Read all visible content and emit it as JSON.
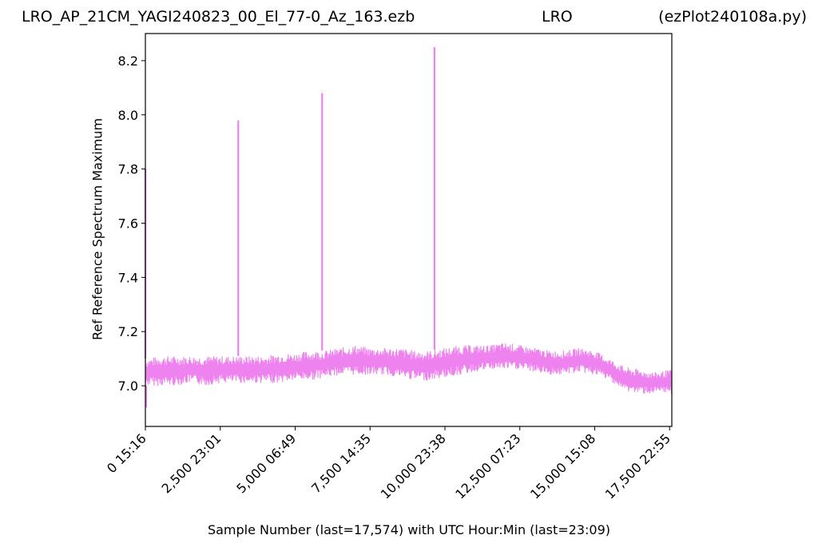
{
  "header": {
    "file": "LRO_AP_21CM_YAGI240823_00_El_77-0_Az_163.ezb",
    "site": "LRO",
    "program": "(ezPlot240108a.py)"
  },
  "chart_data": {
    "type": "line",
    "title": "",
    "xlabel": "Sample Number (last=17,574) with UTC Hour:Min (last=23:09)",
    "ylabel": "Ref Reference Spectrum Maximum",
    "xlim": [
      0,
      17574
    ],
    "ylim": [
      6.85,
      8.3
    ],
    "grid": false,
    "x_ticks": [
      {
        "value": 0,
        "label": "0  15:16"
      },
      {
        "value": 2500,
        "label": "2,500  23:01"
      },
      {
        "value": 5000,
        "label": "5,000  06:49"
      },
      {
        "value": 7500,
        "label": "7,500  14:35"
      },
      {
        "value": 10000,
        "label": "10,000  23:38"
      },
      {
        "value": 12500,
        "label": "12,500  07:23"
      },
      {
        "value": 15000,
        "label": "15,000  15:08"
      },
      {
        "value": 17500,
        "label": "17,500  22:55"
      }
    ],
    "y_ticks": [
      {
        "value": 7.0,
        "label": "7.0"
      },
      {
        "value": 7.2,
        "label": "7.2"
      },
      {
        "value": 7.4,
        "label": "7.4"
      },
      {
        "value": 7.6,
        "label": "7.6"
      },
      {
        "value": 7.8,
        "label": "7.8"
      },
      {
        "value": 8.0,
        "label": "8.0"
      },
      {
        "value": 8.2,
        "label": "8.2"
      }
    ],
    "series": [
      {
        "color": "#ee82ee",
        "band_x": [
          0,
          500,
          1000,
          1500,
          2000,
          2500,
          3000,
          3500,
          4000,
          4500,
          5000,
          5500,
          6000,
          6500,
          7000,
          7500,
          8000,
          8500,
          9000,
          9500,
          10000,
          10500,
          11000,
          11500,
          12000,
          12500,
          13000,
          13500,
          14000,
          14500,
          15000,
          15500,
          16000,
          16500,
          17000,
          17574
        ],
        "band_low": [
          7.0,
          7.0,
          7.0,
          7.01,
          7.0,
          7.01,
          7.01,
          7.01,
          7.01,
          7.01,
          7.02,
          7.02,
          7.03,
          7.04,
          7.04,
          7.04,
          7.04,
          7.03,
          7.02,
          7.02,
          7.03,
          7.04,
          7.05,
          7.06,
          7.06,
          7.06,
          7.05,
          7.04,
          7.04,
          7.05,
          7.04,
          7.02,
          6.98,
          6.97,
          6.97,
          6.97
        ],
        "band_high": [
          7.1,
          7.11,
          7.11,
          7.11,
          7.11,
          7.11,
          7.11,
          7.11,
          7.11,
          7.12,
          7.12,
          7.13,
          7.13,
          7.14,
          7.15,
          7.14,
          7.14,
          7.14,
          7.13,
          7.13,
          7.14,
          7.15,
          7.15,
          7.15,
          7.16,
          7.15,
          7.14,
          7.13,
          7.13,
          7.14,
          7.13,
          7.1,
          7.07,
          7.06,
          7.05,
          7.06
        ],
        "spikes": [
          {
            "x": 0,
            "y": 7.8
          },
          {
            "x": 3100,
            "y": 7.98
          },
          {
            "x": 5900,
            "y": 8.08
          },
          {
            "x": 9650,
            "y": 8.25
          }
        ],
        "dips": [
          {
            "x": 30,
            "y": 6.92
          }
        ]
      }
    ]
  }
}
